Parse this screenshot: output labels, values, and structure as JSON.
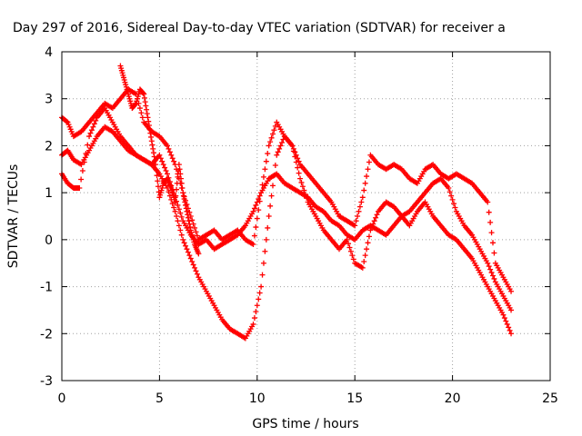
{
  "chart_data": {
    "type": "scatter",
    "title": "Day 297 of 2016, Sidereal Day-to-day VTEC variation (SDTVAR) for receiver a",
    "xlabel": "GPS time / hours",
    "ylabel": "SDTVAR / TECUs",
    "xlim": [
      0,
      25
    ],
    "ylim": [
      -3,
      4
    ],
    "xticks": [
      "0",
      "5",
      "10",
      "15",
      "20",
      "25"
    ],
    "yticks": [
      "-3",
      "-2",
      "-1",
      "0",
      "1",
      "2",
      "3",
      "4"
    ],
    "grid": true,
    "legend": "none",
    "marker": "plus",
    "color": "#ff0000",
    "series": [
      {
        "x": [
          0.0,
          0.3,
          0.6,
          1.0,
          1.4,
          1.8,
          2.2,
          2.6,
          3.0,
          3.4,
          3.8,
          4.2,
          4.6,
          5.0,
          5.4,
          5.8,
          6.2,
          6.6,
          7.0,
          7.4,
          7.8,
          8.2,
          8.6,
          9.0,
          9.4,
          9.8,
          10.2,
          10.6,
          11.0,
          11.4,
          11.8,
          12.2,
          12.6,
          13.0,
          13.4,
          13.8,
          14.2,
          14.6,
          15.0,
          15.4,
          15.8,
          16.2,
          16.6,
          17.0,
          17.4,
          17.8,
          18.2,
          18.6,
          19.0,
          19.4,
          19.8,
          20.2,
          20.6,
          21.0,
          21.4,
          21.8,
          22.2,
          22.6,
          23.0
        ],
        "y": [
          2.6,
          2.5,
          2.2,
          2.3,
          2.5,
          2.7,
          2.9,
          2.8,
          3.0,
          3.2,
          3.1,
          2.5,
          2.3,
          2.2,
          2.0,
          1.6,
          1.0,
          0.5,
          0.0,
          0.1,
          0.2,
          0.0,
          0.1,
          0.2,
          0.0,
          -0.1,
          1.0,
          2.0,
          2.5,
          2.2,
          2.0,
          1.6,
          1.4,
          1.2,
          1.0,
          0.8,
          0.5,
          0.4,
          0.3,
          0.9,
          1.8,
          1.6,
          1.5,
          1.6,
          1.5,
          1.3,
          1.2,
          1.5,
          1.6,
          1.4,
          1.3,
          1.4,
          1.3,
          1.2,
          1.0,
          0.8,
          -0.5,
          -0.8,
          -1.1
        ]
      },
      {
        "x": [
          0.0,
          0.3,
          0.6,
          1.0,
          1.4,
          1.8,
          2.2,
          2.6,
          3.0,
          3.4,
          3.8,
          4.2,
          4.6,
          5.0,
          5.4,
          5.8,
          6.2,
          6.6,
          7.0,
          7.4,
          7.8,
          8.2,
          8.6,
          9.0,
          9.4,
          9.8,
          10.2,
          10.6,
          11.0,
          11.4,
          11.8,
          12.2,
          12.6,
          13.0,
          13.4,
          13.8,
          14.2,
          14.6,
          15.0,
          15.4,
          15.8,
          16.2,
          16.6,
          17.0,
          17.4,
          17.8,
          18.2,
          18.6,
          19.0,
          19.4,
          19.8,
          20.2,
          20.6,
          21.0,
          21.4,
          21.8,
          22.2,
          22.6,
          23.0
        ],
        "y": [
          1.8,
          1.9,
          1.7,
          1.6,
          1.9,
          2.2,
          2.4,
          2.3,
          2.1,
          1.9,
          1.8,
          1.7,
          1.6,
          1.8,
          1.4,
          0.9,
          0.4,
          0.1,
          -0.1,
          0.0,
          -0.2,
          -0.1,
          0.0,
          0.1,
          0.3,
          0.6,
          1.0,
          1.3,
          1.4,
          1.2,
          1.1,
          1.0,
          0.9,
          0.7,
          0.6,
          0.4,
          0.3,
          0.1,
          0.0,
          0.2,
          0.3,
          0.2,
          0.1,
          0.3,
          0.5,
          0.6,
          0.8,
          1.0,
          1.2,
          1.3,
          1.1,
          0.6,
          0.3,
          0.1,
          -0.2,
          -0.5,
          -0.9,
          -1.2,
          -1.5
        ]
      },
      {
        "x": [
          0.0,
          0.3,
          0.6,
          0.9,
          1.4,
          1.8,
          2.2,
          2.6,
          3.0,
          3.4,
          3.8,
          4.2,
          4.6,
          5.0,
          5.4,
          5.8,
          6.2,
          6.6,
          7.0,
          7.4,
          7.8,
          8.2,
          8.6,
          9.0,
          9.4,
          9.8,
          10.2,
          10.6,
          11.0,
          11.4,
          11.8,
          12.2,
          12.6,
          13.0,
          13.4,
          13.8,
          14.2,
          14.6,
          15.0,
          15.4,
          15.8,
          16.2,
          16.6,
          17.0,
          17.4,
          17.8,
          18.2,
          18.6,
          19.0,
          19.4,
          19.8,
          20.2,
          20.6,
          21.0,
          21.4,
          21.8,
          22.2,
          22.6,
          23.0
        ],
        "y": [
          1.4,
          1.2,
          1.1,
          1.1,
          2.2,
          2.6,
          2.8,
          2.5,
          2.2,
          2.0,
          1.8,
          1.7,
          1.6,
          1.4,
          1.1,
          0.6,
          0.0,
          -0.4,
          -0.8,
          -1.1,
          -1.4,
          -1.7,
          -1.9,
          -2.0,
          -2.1,
          -1.8,
          -1.0,
          0.5,
          1.8,
          2.2,
          2.0,
          1.3,
          0.8,
          0.5,
          0.2,
          0.0,
          -0.2,
          0.0,
          -0.5,
          -0.6,
          0.2,
          0.6,
          0.8,
          0.7,
          0.5,
          0.3,
          0.6,
          0.8,
          0.5,
          0.3,
          0.1,
          0.0,
          -0.2,
          -0.4,
          -0.7,
          -1.0,
          -1.3,
          -1.6,
          -2.0
        ]
      },
      {
        "x": [
          3.0,
          3.2,
          3.4,
          3.6,
          3.8,
          4.0,
          4.2,
          4.4,
          4.6,
          4.8,
          5.0,
          5.2,
          5.4,
          5.6,
          5.8,
          6.0,
          6.2,
          6.4,
          6.6,
          6.8,
          7.0
        ],
        "y": [
          3.7,
          3.4,
          3.1,
          2.8,
          2.9,
          3.2,
          3.1,
          2.6,
          2.1,
          1.6,
          0.9,
          1.2,
          1.3,
          1.1,
          0.8,
          1.6,
          1.0,
          0.6,
          0.2,
          -0.1,
          -0.3
        ]
      }
    ]
  }
}
